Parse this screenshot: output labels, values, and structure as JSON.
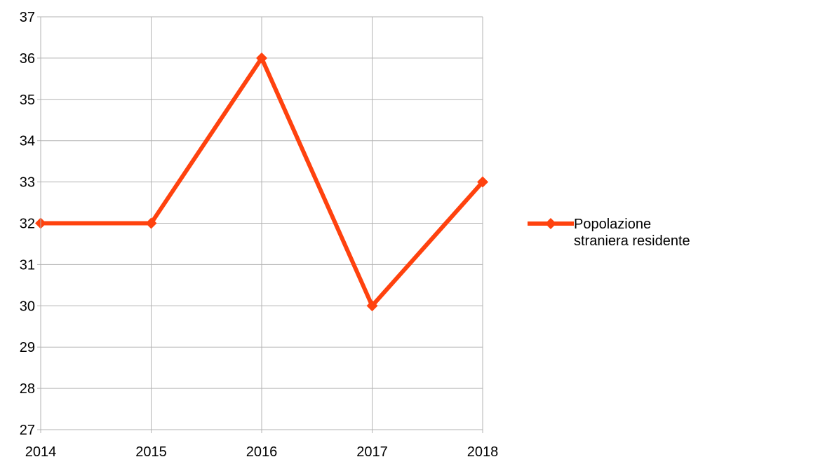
{
  "chart_data": {
    "type": "line",
    "x": [
      2014,
      2015,
      2016,
      2017,
      2018
    ],
    "xlim": [
      2014,
      2018
    ],
    "xticks": [
      2014,
      2015,
      2016,
      2017,
      2018
    ],
    "series": [
      {
        "name": "Popolazione straniera residente",
        "color": "#ff420e",
        "values": [
          32,
          32,
          36,
          30,
          33
        ]
      }
    ],
    "ylim": [
      27,
      37
    ],
    "yticks": [
      27,
      28,
      29,
      30,
      31,
      32,
      33,
      34,
      35,
      36,
      37
    ],
    "grid": true,
    "legend": "right"
  }
}
